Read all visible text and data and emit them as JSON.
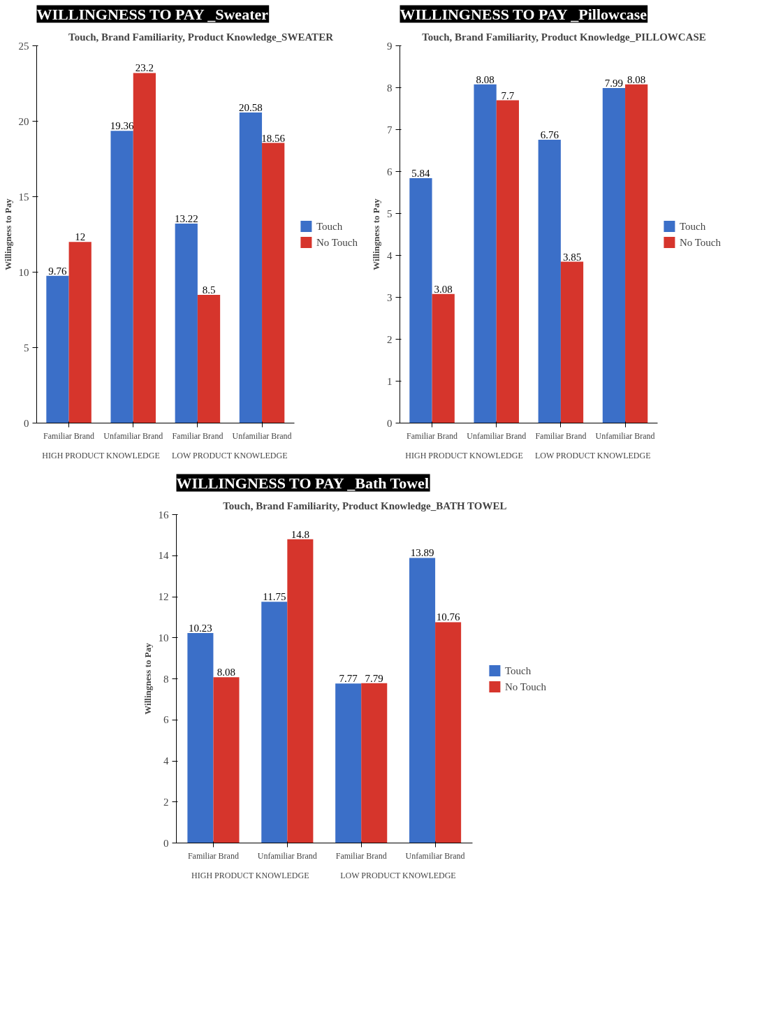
{
  "chart_data": [
    {
      "type": "bar",
      "title": "WILLINGNESS TO PAY _Sweater",
      "subtitle": "Touch, Brand Familiarity, Product Knowledge_SWEATER",
      "ylabel": "Willingness to Pay",
      "categories": [
        "Familiar Brand",
        "Unfamiliar Brand",
        "Familiar Brand",
        "Unfamiliar Brand"
      ],
      "annotations": [
        "HIGH PRODUCT KNOWLEDGE",
        "LOW PRODUCT KNOWLEDGE"
      ],
      "ylim": [
        0,
        25
      ],
      "yticks": [
        0,
        5,
        10,
        15,
        20,
        25
      ],
      "grid": false,
      "legend": "right",
      "data_labels": true,
      "series": [
        {
          "name": "Touch",
          "color": "#3b6fc8",
          "values": [
            9.76,
            19.36,
            13.22,
            20.58
          ]
        },
        {
          "name": "No Touch",
          "color": "#d6352c",
          "values": [
            12,
            23.2,
            8.5,
            18.56
          ]
        }
      ]
    },
    {
      "type": "bar",
      "title": "WILLINGNESS TO PAY _Pillowcase",
      "subtitle": "Touch, Brand Familiarity, Product Knowledge_PILLOWCASE",
      "ylabel": "Willingness to Pay",
      "categories": [
        "Familiar Brand",
        "Unfamiliar Brand",
        "Familiar Brand",
        "Unfamiliar Brand"
      ],
      "annotations": [
        "HIGH PRODUCT KNOWLEDGE",
        "LOW PRODUCT KNOWLEDGE"
      ],
      "ylim": [
        0,
        9
      ],
      "yticks": [
        0,
        1,
        2,
        3,
        4,
        5,
        6,
        7,
        8,
        9
      ],
      "grid": false,
      "legend": "right",
      "data_labels": true,
      "series": [
        {
          "name": "Touch",
          "color": "#3b6fc8",
          "values": [
            5.84,
            8.08,
            6.76,
            7.99
          ]
        },
        {
          "name": "No Touch",
          "color": "#d6352c",
          "values": [
            3.08,
            7.7,
            3.85,
            8.08
          ]
        }
      ]
    },
    {
      "type": "bar",
      "title": "WILLINGNESS TO PAY _Bath Towel",
      "subtitle": "Touch, Brand Familiarity, Product Knowledge_BATH TOWEL",
      "ylabel": "Willingness to Pay",
      "categories": [
        "Familiar Brand",
        "Unfamiliar Brand",
        "Familiar Brand",
        "Unfamiliar Brand"
      ],
      "annotations": [
        "HIGH PRODUCT KNOWLEDGE",
        "LOW PRODUCT KNOWLEDGE"
      ],
      "ylim": [
        0,
        16
      ],
      "yticks": [
        0,
        2,
        4,
        6,
        8,
        10,
        12,
        14,
        16
      ],
      "grid": false,
      "legend": "right",
      "data_labels": true,
      "series": [
        {
          "name": "Touch",
          "color": "#3b6fc8",
          "values": [
            10.23,
            11.75,
            7.77,
            13.89
          ]
        },
        {
          "name": "No Touch",
          "color": "#d6352c",
          "values": [
            8.08,
            14.8,
            7.79,
            10.76
          ]
        }
      ]
    }
  ]
}
